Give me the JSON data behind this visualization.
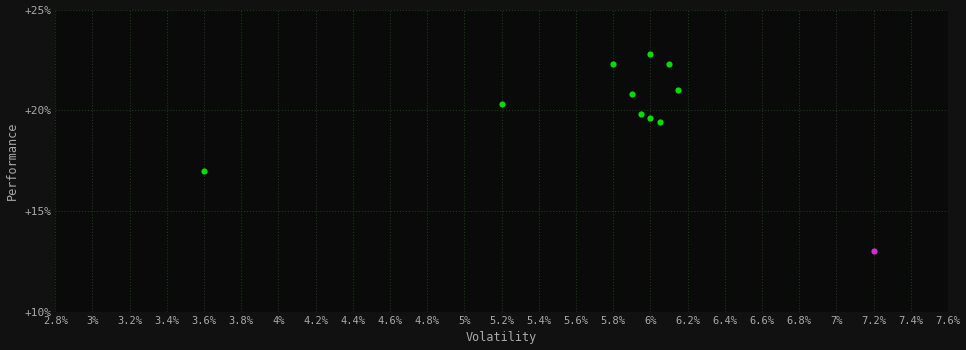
{
  "background_color": "#111111",
  "plot_bg_color": "#0a0a0a",
  "xlabel": "Volatility",
  "ylabel": "Performance",
  "label_color": "#aaaaaa",
  "tick_color": "#aaaaaa",
  "xlim": [
    0.028,
    0.076
  ],
  "ylim": [
    0.1,
    0.25
  ],
  "xticks": [
    0.028,
    0.03,
    0.032,
    0.034,
    0.036,
    0.038,
    0.04,
    0.042,
    0.044,
    0.046,
    0.048,
    0.05,
    0.052,
    0.054,
    0.056,
    0.058,
    0.06,
    0.062,
    0.064,
    0.066,
    0.068,
    0.07,
    0.072,
    0.074,
    0.076
  ],
  "xtick_labels": [
    "2.8%",
    "3%",
    "3.2%",
    "3.4%",
    "3.6%",
    "3.8%",
    "4%",
    "4.2%",
    "4.4%",
    "4.6%",
    "4.8%",
    "5%",
    "5.2%",
    "5.4%",
    "5.6%",
    "5.8%",
    "6%",
    "6.2%",
    "6.4%",
    "6.6%",
    "6.8%",
    "7%",
    "7.2%",
    "7.4%",
    "7.6%"
  ],
  "yticks": [
    0.1,
    0.15,
    0.2,
    0.25
  ],
  "ytick_labels": [
    "+10%",
    "+15%",
    "+20%",
    "+25%"
  ],
  "green_points": [
    [
      0.036,
      0.17
    ],
    [
      0.052,
      0.203
    ],
    [
      0.058,
      0.223
    ],
    [
      0.06,
      0.228
    ],
    [
      0.061,
      0.223
    ],
    [
      0.059,
      0.208
    ],
    [
      0.0615,
      0.21
    ],
    [
      0.0595,
      0.198
    ],
    [
      0.06,
      0.196
    ],
    [
      0.0605,
      0.194
    ]
  ],
  "magenta_points": [
    [
      0.072,
      0.13
    ]
  ],
  "green_color": "#00dd00",
  "magenta_color": "#cc33cc",
  "marker_size": 20
}
